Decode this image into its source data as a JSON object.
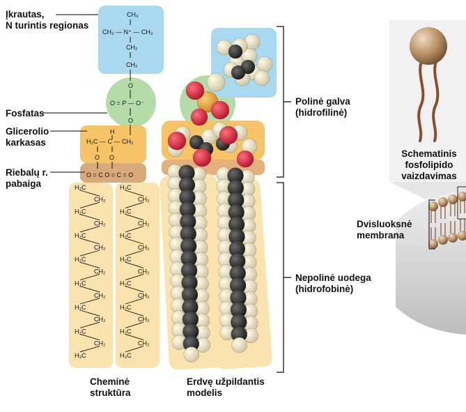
{
  "labels": {
    "charged_group": "Įkrautas,\nN turintis regionas",
    "phosphate": "Fosfatas",
    "glycerol_backbone": "Glicerolio\nkarkasas",
    "fatty_acid_end": "Riebalų r.\npabaiga",
    "chemical_structure": "Cheminė\nstruktūra",
    "space_filling_model": "Erdvę užpildantis\nmodelis",
    "polar_head": "Polinė galva\n(hidrofilinė)",
    "nonpolar_tail": "Nepolinė uodega\n(hidrofobinė)",
    "schematic_phospholipid": "Schematinis\nfosfolipido\nvaizdavimas",
    "bilayer_membrane": "Dvisluoksnė\nmembrana"
  },
  "chemistry": {
    "choline_top": "CH₃",
    "choline_left": "CH₃ — N⁺ — CH₃",
    "ch2": "CH₂",
    "oxygen": "O",
    "phosphate_row": "O = P — O⁻",
    "h": "H",
    "glycerol_row": "H₂C — C — CH₂",
    "ester_row": "O = C    O = C = O",
    "tail_ch2": "CH₂",
    "tail_h2c": "H₂C",
    "tail_end": "H₃C"
  },
  "colors": {
    "choline_blue": "#a9d9f1",
    "phosphate_green": "#b5dba8",
    "glycerol_orange": "#f6c466",
    "ester_tan": "#d8a97a",
    "tail_cream": "#fae3ae",
    "carbon_black": "#2b2b2b",
    "hydrogen_cream": "#ede6c9",
    "oxygen_red": "#d7263d",
    "phosphorus_gold": "#e8a23a",
    "membrane_shade": "#d7d7d7"
  }
}
